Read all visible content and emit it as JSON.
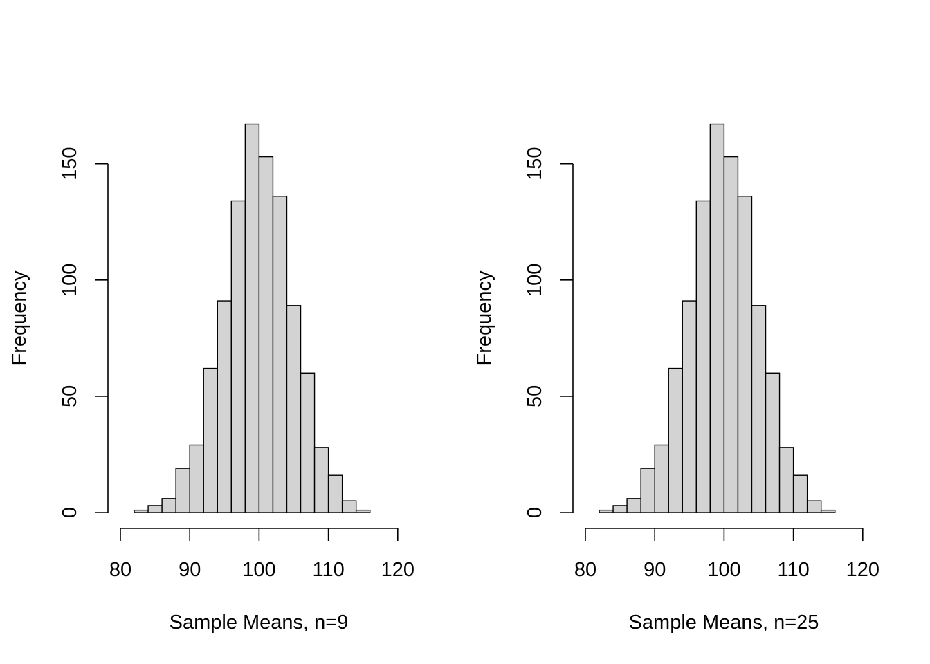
{
  "chart_data": [
    {
      "type": "bar",
      "title": "",
      "xlabel": "Sample Means, n=9",
      "ylabel": "Frequency",
      "xlim": [
        80,
        120
      ],
      "ylim": [
        0,
        150
      ],
      "x_ticks": [
        80,
        90,
        100,
        110,
        120
      ],
      "y_ticks": [
        0,
        50,
        100,
        150
      ],
      "bin_edges": [
        82,
        84,
        86,
        88,
        90,
        92,
        94,
        96,
        98,
        100,
        102,
        104,
        106,
        108,
        110,
        112,
        114,
        116
      ],
      "values": [
        1,
        3,
        6,
        19,
        29,
        62,
        91,
        134,
        167,
        153,
        136,
        89,
        60,
        28,
        16,
        5,
        1
      ],
      "grid": false,
      "bar_color": "#d3d3d3"
    },
    {
      "type": "bar",
      "title": "",
      "xlabel": "Sample Means, n=25",
      "ylabel": "Frequency",
      "xlim": [
        80,
        120
      ],
      "ylim": [
        0,
        150
      ],
      "x_ticks": [
        80,
        90,
        100,
        110,
        120
      ],
      "y_ticks": [
        0,
        50,
        100,
        150
      ],
      "bin_edges": [
        82,
        84,
        86,
        88,
        90,
        92,
        94,
        96,
        98,
        100,
        102,
        104,
        106,
        108,
        110,
        112,
        114,
        116
      ],
      "values": [
        1,
        3,
        6,
        19,
        29,
        62,
        91,
        134,
        167,
        153,
        136,
        89,
        60,
        28,
        16,
        5,
        1
      ],
      "grid": false,
      "bar_color": "#d3d3d3"
    }
  ]
}
